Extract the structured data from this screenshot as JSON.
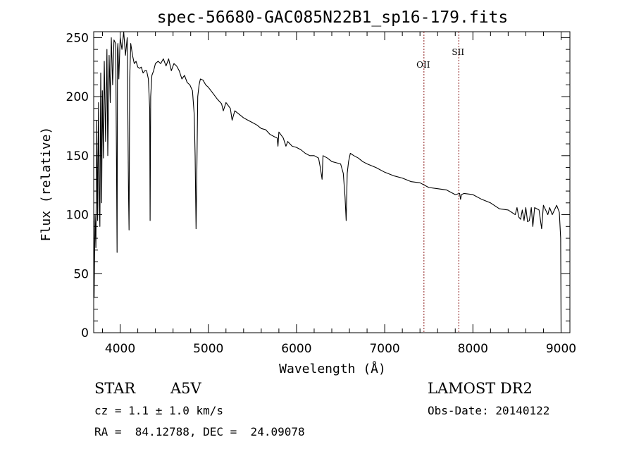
{
  "chart_data": {
    "type": "line",
    "title": "spec-56680-GAC085N22B1_sp16-179.fits",
    "xlabel": "Wavelength (Å)",
    "ylabel": "Flux (relative)",
    "xlim": [
      3700,
      9100
    ],
    "ylim": [
      0,
      255
    ],
    "x_ticks": [
      4000,
      5000,
      6000,
      7000,
      8000,
      9000
    ],
    "x_tick_labels": [
      "4000",
      "5000",
      "6000",
      "7000",
      "8000",
      "9000"
    ],
    "y_ticks": [
      0,
      50,
      100,
      150,
      200,
      250
    ],
    "y_tick_labels": [
      "0",
      "50",
      "100",
      "150",
      "200",
      "250"
    ],
    "grid": false,
    "series": [
      {
        "line_color": "#000000",
        "x": [
          3700,
          3705,
          3715,
          3725,
          3735,
          3745,
          3755,
          3765,
          3770,
          3780,
          3790,
          3798,
          3810,
          3820,
          3835,
          3850,
          3860,
          3875,
          3888,
          3900,
          3915,
          3930,
          3950,
          3965,
          3970,
          3975,
          3985,
          4000,
          4020,
          4040,
          4060,
          4080,
          4095,
          4101,
          4108,
          4120,
          4140,
          4160,
          4180,
          4200,
          4220,
          4240,
          4260,
          4280,
          4300,
          4320,
          4335,
          4340,
          4346,
          4360,
          4380,
          4400,
          4430,
          4460,
          4490,
          4520,
          4550,
          4580,
          4610,
          4640,
          4670,
          4700,
          4730,
          4760,
          4790,
          4820,
          4840,
          4850,
          4861,
          4870,
          4880,
          4895,
          4910,
          4940,
          4970,
          5000,
          5030,
          5060,
          5100,
          5150,
          5170,
          5200,
          5250,
          5270,
          5300,
          5350,
          5400,
          5450,
          5500,
          5550,
          5600,
          5650,
          5700,
          5750,
          5780,
          5790,
          5800,
          5850,
          5880,
          5890,
          5900,
          5950,
          6000,
          6050,
          6100,
          6150,
          6200,
          6250,
          6270,
          6290,
          6300,
          6350,
          6400,
          6450,
          6500,
          6530,
          6550,
          6563,
          6575,
          6590,
          6610,
          6650,
          6700,
          6750,
          6800,
          6900,
          7000,
          7100,
          7200,
          7300,
          7400,
          7500,
          7600,
          7700,
          7800,
          7850,
          7860,
          7870,
          7900,
          8000,
          8100,
          8200,
          8300,
          8400,
          8480,
          8500,
          8520,
          8542,
          8560,
          8580,
          8600,
          8620,
          8640,
          8662,
          8680,
          8700,
          8750,
          8780,
          8800,
          8850,
          8870,
          8900,
          8950,
          8980,
          8995,
          9000
        ],
        "y": [
          95,
          30,
          100,
          72,
          180,
          95,
          195,
          108,
          90,
          220,
          110,
          205,
          148,
          230,
          162,
          240,
          150,
          235,
          195,
          250,
          210,
          248,
          245,
          68,
          240,
          245,
          215,
          250,
          240,
          255,
          235,
          250,
          120,
          87,
          215,
          245,
          235,
          228,
          230,
          225,
          224,
          225,
          220,
          222,
          222,
          215,
          190,
          95,
          200,
          218,
          222,
          228,
          230,
          228,
          232,
          226,
          232,
          222,
          228,
          226,
          222,
          215,
          218,
          212,
          210,
          205,
          185,
          150,
          88,
          140,
          200,
          210,
          215,
          214,
          210,
          208,
          205,
          202,
          198,
          194,
          188,
          195,
          190,
          180,
          188,
          185,
          182,
          180,
          178,
          176,
          173,
          172,
          168,
          166,
          165,
          158,
          170,
          165,
          158,
          160,
          162,
          158,
          157,
          155,
          152,
          150,
          150,
          148,
          140,
          130,
          150,
          148,
          145,
          144,
          143,
          135,
          115,
          95,
          135,
          145,
          152,
          150,
          148,
          145,
          143,
          140,
          136,
          133,
          131,
          128,
          127,
          123,
          122,
          121,
          117,
          118,
          113,
          117,
          118,
          117,
          113,
          110,
          105,
          104,
          100,
          106,
          98,
          96,
          104,
          95,
          106,
          94,
          95,
          106,
          90,
          106,
          104,
          88,
          108,
          100,
          106,
          100,
          108,
          102,
          80,
          0
        ]
      }
    ],
    "reference_lines": [
      {
        "label": "OII",
        "x": 7445,
        "color": "#8b1a1a"
      },
      {
        "label": "SII",
        "x": 7840,
        "color": "#8b1a1a"
      }
    ],
    "annotations": {
      "object_type": "STAR",
      "subclass": "A5V",
      "survey": "LAMOST DR2",
      "cz": "cz = 1.1 ± 1.0 km/s",
      "obs_date": "Obs-Date: 20140122",
      "coords": "RA =  84.12788, DEC =  24.09078"
    }
  }
}
